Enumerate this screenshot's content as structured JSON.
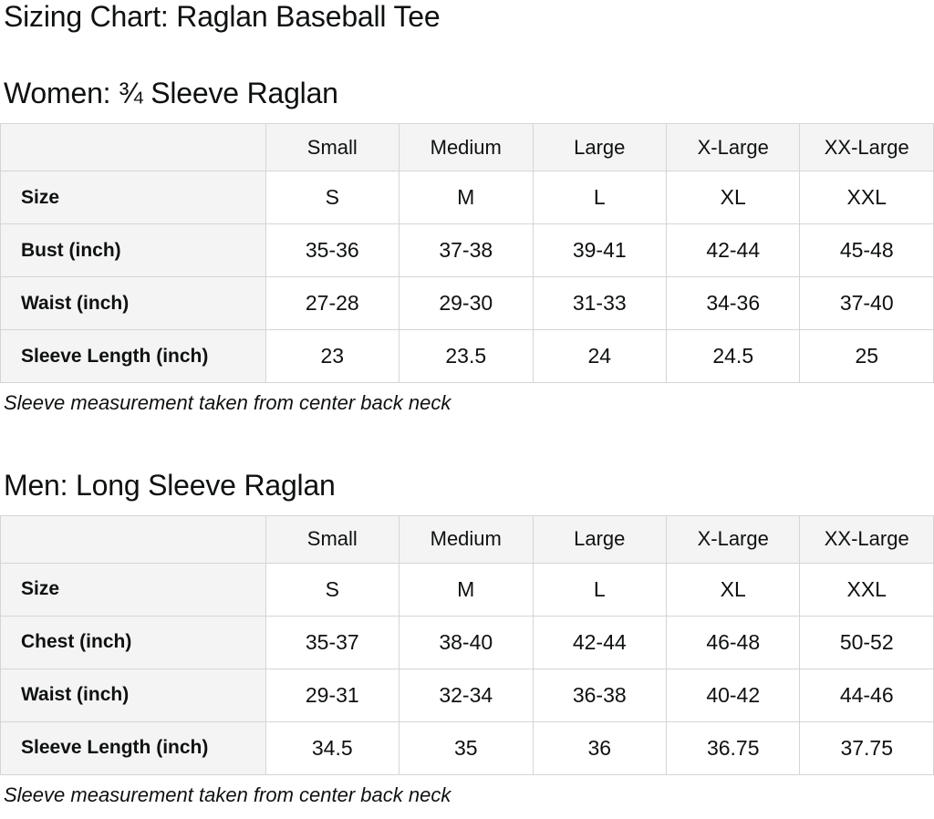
{
  "page": {
    "title": "Sizing Chart: Raglan Baseball Tee"
  },
  "colors": {
    "background": "#ffffff",
    "text": "#0f1111",
    "table_border": "#d5d5d5",
    "header_cell_bg": "#f4f4f4",
    "data_cell_bg": "#ffffff"
  },
  "women": {
    "heading": "Women: ¾ Sleeve Raglan",
    "columns": [
      "Small",
      "Medium",
      "Large",
      "X-Large",
      "XX-Large"
    ],
    "rows": [
      {
        "label": "Size",
        "values": [
          "S",
          "M",
          "L",
          "XL",
          "XXL"
        ]
      },
      {
        "label": "Bust (inch)",
        "values": [
          "35-36",
          "37-38",
          "39-41",
          "42-44",
          "45-48"
        ]
      },
      {
        "label": "Waist (inch)",
        "values": [
          "27-28",
          "29-30",
          "31-33",
          "34-36",
          "37-40"
        ]
      },
      {
        "label": "Sleeve Length (inch)",
        "values": [
          "23",
          "23.5",
          "24",
          "24.5",
          "25"
        ]
      }
    ],
    "note": "Sleeve measurement taken from center back neck"
  },
  "men": {
    "heading": "Men: Long Sleeve Raglan",
    "columns": [
      "Small",
      "Medium",
      "Large",
      "X-Large",
      "XX-Large"
    ],
    "rows": [
      {
        "label": "Size",
        "values": [
          "S",
          "M",
          "L",
          "XL",
          "XXL"
        ]
      },
      {
        "label": "Chest (inch)",
        "values": [
          "35-37",
          "38-40",
          "42-44",
          "46-48",
          "50-52"
        ]
      },
      {
        "label": "Waist (inch)",
        "values": [
          "29-31",
          "32-34",
          "36-38",
          "40-42",
          "44-46"
        ]
      },
      {
        "label": "Sleeve Length (inch)",
        "values": [
          "34.5",
          "35",
          "36",
          "36.75",
          "37.75"
        ]
      }
    ],
    "note": "Sleeve measurement taken from center back neck"
  }
}
